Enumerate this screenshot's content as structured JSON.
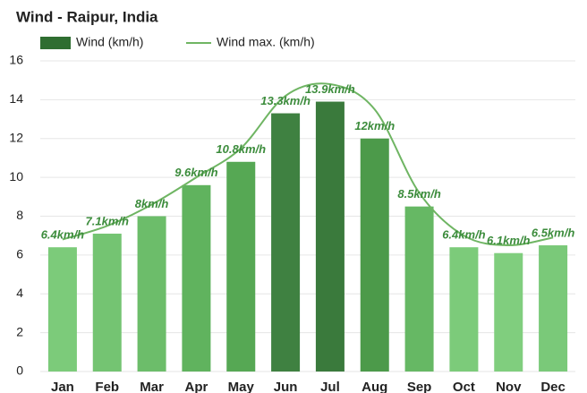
{
  "chart_data": {
    "type": "bar_line",
    "title": "Wind - Raipur, India",
    "categories": [
      "Jan",
      "Feb",
      "Mar",
      "Apr",
      "May",
      "Jun",
      "Jul",
      "Aug",
      "Sep",
      "Oct",
      "Nov",
      "Dec"
    ],
    "series": [
      {
        "name": "Wind (km/h)",
        "type": "bar",
        "color": "#2f6e31",
        "colors": [
          "#7ccb7a",
          "#74c472",
          "#6cbd6a",
          "#60b35e",
          "#56a854",
          "#3f8141",
          "#3a7a3c",
          "#4c9a4a",
          "#66b864",
          "#7ccb7a",
          "#80ce7e",
          "#7ac979"
        ],
        "values": [
          6.4,
          7.1,
          8,
          9.6,
          10.8,
          13.3,
          13.9,
          12,
          8.5,
          6.4,
          6.1,
          6.5
        ],
        "value_labels": [
          "6.4km/h",
          "7.1km/h",
          "8km/h",
          "9.6km/h",
          "10.8km/h",
          "13.3km/h",
          "13.9km/h",
          "12km/h",
          "8.5km/h",
          "6.4km/h",
          "6.1km/h",
          "6.5km/h"
        ]
      },
      {
        "name": "Wind max. (km/h)",
        "type": "line",
        "color": "#6fb563",
        "values": [
          6.8,
          7.5,
          8.6,
          10,
          11.5,
          14.2,
          14.8,
          13.5,
          9.2,
          7,
          6.5,
          6.9
        ]
      }
    ],
    "ylim": [
      0,
      16
    ],
    "yticks": [
      0,
      2,
      4,
      6,
      8,
      10,
      12,
      14,
      16
    ],
    "grid": true
  }
}
